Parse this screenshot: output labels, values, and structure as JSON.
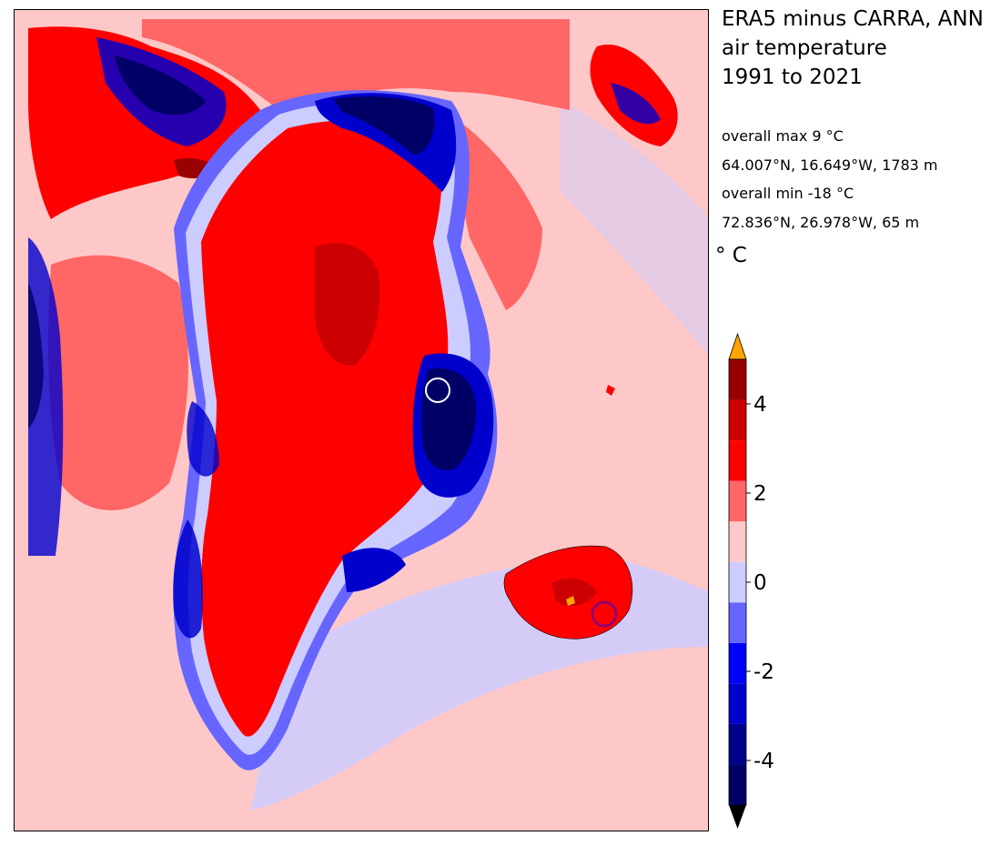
{
  "title": {
    "line1": "ERA5 minus CARRA, ANN",
    "line2": "air temperature",
    "line3": "1991 to 2021"
  },
  "stats": {
    "max_label": "overall max 9 °C",
    "max_location": "64.007°N, 16.649°W, 1783 m",
    "min_label": "overall min -18 °C",
    "min_location": "72.836°N, 26.978°W, 65 m"
  },
  "unit": "° C",
  "colorbar": {
    "levels": [
      -5,
      -4.5,
      -4,
      -3.5,
      -3,
      -2.5,
      -2,
      -1.5,
      -1,
      -0.5,
      0,
      0.5,
      1,
      1.5,
      2,
      2.5,
      3,
      3.5,
      4,
      4.5,
      5
    ],
    "colors": [
      "#000066",
      "#00008b",
      "#0000cd",
      "#0000ff",
      "#6666ff",
      "#ccccff",
      "#ffc8c8",
      "#ff6666",
      "#ff0000",
      "#cc0000",
      "#990000"
    ],
    "ticks": [
      {
        "value": 4,
        "label": "4"
      },
      {
        "value": 2,
        "label": "2"
      },
      {
        "value": 0,
        "label": "0"
      },
      {
        "value": -2,
        "label": "-2"
      },
      {
        "value": -4,
        "label": "-4"
      }
    ],
    "extend_max_color": "#ffa500",
    "extend_min_color": "#000000"
  },
  "map": {
    "ocean_color": "#ffc8c8",
    "markers": [
      {
        "name": "min-marker-circle",
        "stroke": "#ffffff"
      },
      {
        "name": "max-marker-circle",
        "stroke": "#800080"
      }
    ]
  }
}
